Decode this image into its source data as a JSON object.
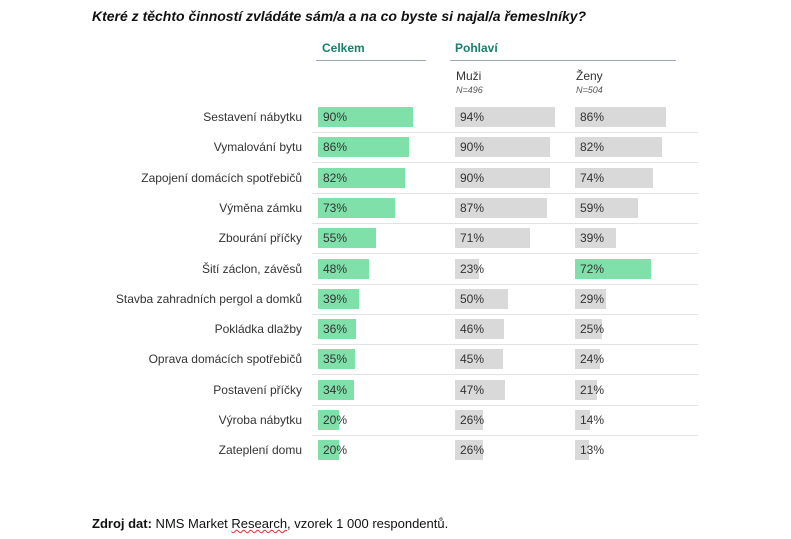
{
  "title": "Které z těchto činností zvládáte sám/a a na co byste si najal/a řemeslníky?",
  "groups": {
    "celkem": "Celkem",
    "pohlavi": "Pohlaví"
  },
  "columns": [
    {
      "name": "Muži",
      "sub": "N=496"
    },
    {
      "name": "Ženy",
      "sub": "N=504"
    }
  ],
  "colors": {
    "celkem": "#7fe0a9",
    "muzi": "#d9d9d9",
    "zeny_default": "#d9d9d9",
    "zeny_highlight": "#7fe0a9",
    "header": "#1a7f6b"
  },
  "chart_data": {
    "type": "bar",
    "orientation": "horizontal",
    "categories": [
      "Sestavení nábytku",
      "Vymalování bytu",
      "Zapojení domácích spotřebičů",
      "Výměna zámku",
      "Zbourání příčky",
      "Šití záclon, závěsů",
      "Stavba zahradních pergol a domků",
      "Pokládka dlažby",
      "Oprava domácích spotřebičů",
      "Postavení příčky",
      "Výroba nábytku",
      "Zateplení domu"
    ],
    "series": [
      {
        "name": "Celkem",
        "values": [
          90,
          86,
          82,
          73,
          55,
          48,
          39,
          36,
          35,
          34,
          20,
          20
        ]
      },
      {
        "name": "Muži",
        "values": [
          94,
          90,
          90,
          87,
          71,
          23,
          50,
          46,
          45,
          47,
          26,
          26
        ]
      },
      {
        "name": "Ženy",
        "values": [
          86,
          82,
          74,
          59,
          39,
          72,
          29,
          25,
          24,
          21,
          14,
          13
        ]
      }
    ],
    "unit": "%",
    "xlim": [
      0,
      100
    ],
    "highlight": {
      "series": "Ženy",
      "category": "Šití záclon, závěsů"
    }
  },
  "source": {
    "label": "Zdroj dat:",
    "text_before": " NMS Market ",
    "text_marked": "Research",
    "text_after": ", vzorek 1 000 respondentů."
  }
}
